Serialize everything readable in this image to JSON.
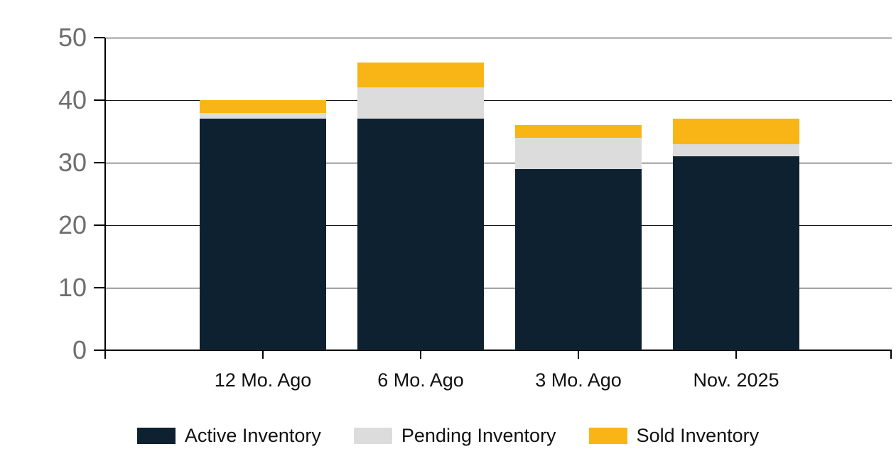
{
  "chart_data": {
    "type": "bar",
    "stacked": true,
    "title": "",
    "xlabel": "",
    "ylabel": "",
    "categories": [
      "12 Mo. Ago",
      "6 Mo. Ago",
      "3 Mo. Ago",
      "Nov. 2025"
    ],
    "series": [
      {
        "name": "Active Inventory",
        "color": "#0e2130",
        "values": [
          37,
          37,
          29,
          31
        ]
      },
      {
        "name": "Pending Inventory",
        "color": "#dcdcdc",
        "values": [
          1,
          5,
          5,
          2
        ]
      },
      {
        "name": "Sold Inventory",
        "color": "#f9b515",
        "values": [
          2,
          4,
          2,
          4
        ]
      }
    ],
    "stack_totals": [
      40,
      46,
      36,
      37
    ],
    "ylim": [
      0,
      50
    ],
    "yticks": [
      "0",
      "10",
      "20",
      "30",
      "40",
      "50"
    ],
    "grid": true,
    "legend_position": "bottom"
  },
  "style": {
    "background": "#ffffff",
    "y_label_color": "#6e6e6e",
    "x_label_color": "#111111",
    "gridline_color": "#141414",
    "axis_color": "#000000",
    "legend_text_color": "#111111"
  }
}
